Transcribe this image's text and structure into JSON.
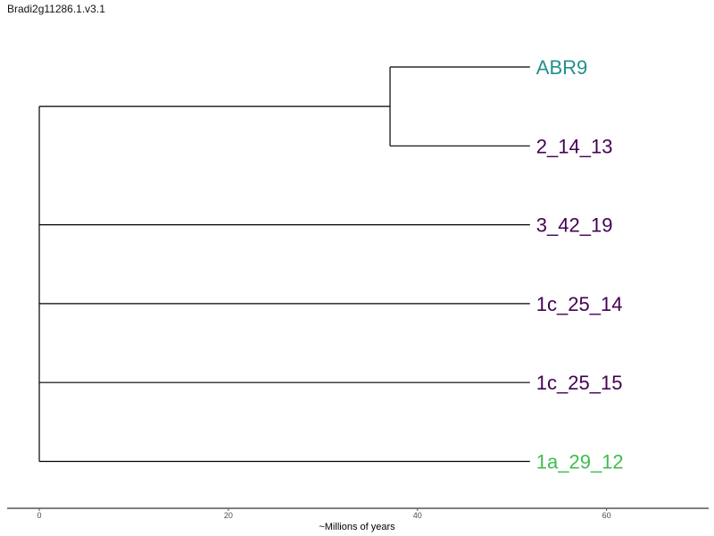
{
  "title": "Bradi2g11286.1.v3.1",
  "tree": {
    "x_axis": {
      "label": "~Millions of years",
      "ticks": [
        0,
        20,
        40,
        60
      ],
      "range": [
        -3.4,
        70.8
      ]
    },
    "leaves": [
      {
        "label": "ABR9",
        "color": "#21908C",
        "tip_x": 51.9
      },
      {
        "label": "2_14_13",
        "color": "#440154",
        "tip_x": 51.9
      },
      {
        "label": "3_42_19",
        "color": "#440154",
        "tip_x": 51.9
      },
      {
        "label": "1c_25_14",
        "color": "#440154",
        "tip_x": 51.9
      },
      {
        "label": "1c_25_15",
        "color": "#440154",
        "tip_x": 51.9
      },
      {
        "label": "1a_29_12",
        "color": "#3FBC4F",
        "tip_x": 51.9
      }
    ],
    "internal_nodes": [
      {
        "name": "root",
        "x": 0,
        "children": [
          "clade_abr9_2_14_13",
          "3_42_19",
          "1c_25_14",
          "1c_25_15",
          "1a_29_12"
        ]
      },
      {
        "name": "clade_abr9_2_14_13",
        "x": 37.1,
        "children": [
          "ABR9",
          "2_14_13"
        ]
      }
    ]
  }
}
